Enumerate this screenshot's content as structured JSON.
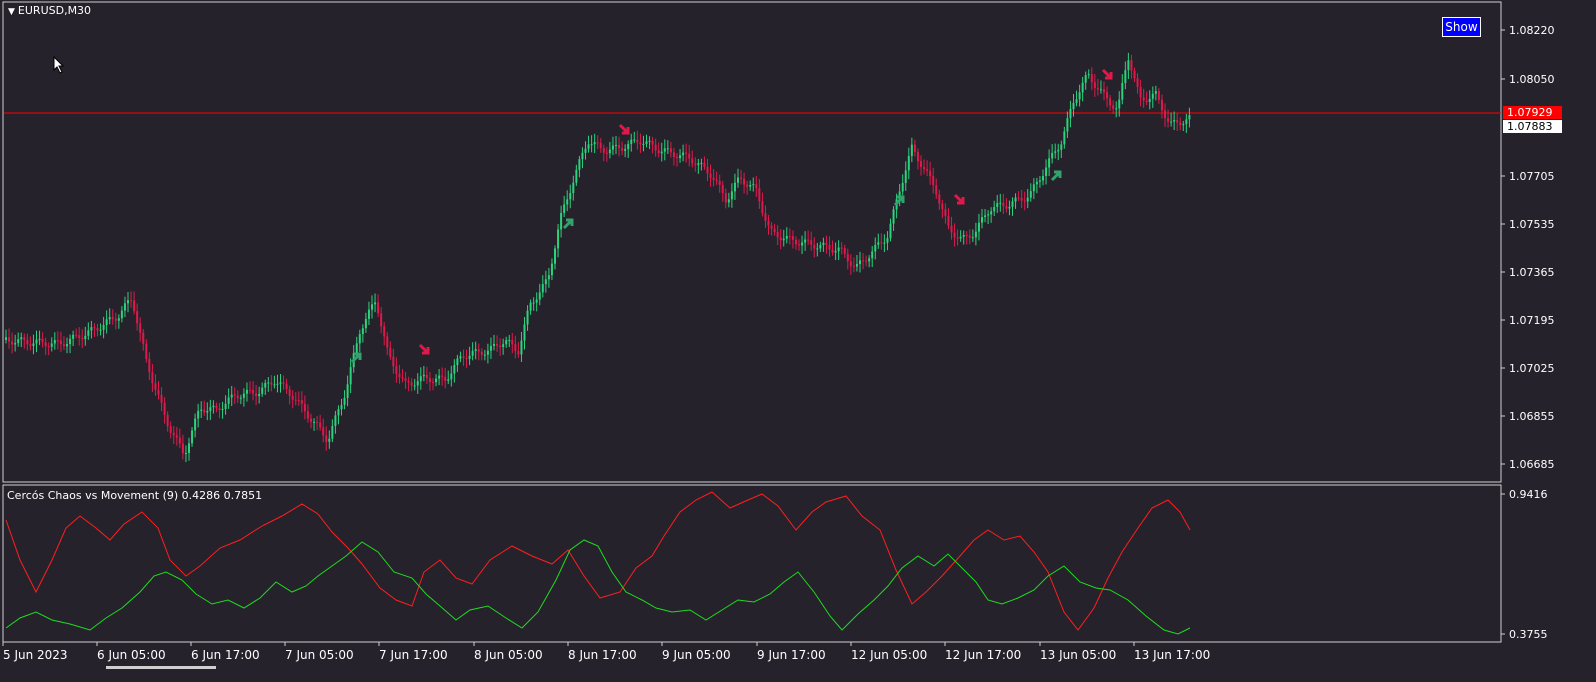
{
  "symbol": {
    "label": "EURUSD,M30"
  },
  "show_button": {
    "label": "Show"
  },
  "indicator": {
    "label": "Cercós Chaos vs Movement (9) 0.4286 0.7851"
  },
  "price_axis": [
    "1.08220",
    "1.08050",
    "1.07705",
    "1.07535",
    "1.07365",
    "1.07195",
    "1.07025",
    "1.06855",
    "1.06685"
  ],
  "price_tags": {
    "bid": "1.07929",
    "current": "1.07883"
  },
  "indicator_axis": {
    "top": "0.9416",
    "bottom": "0.3755"
  },
  "time_axis": [
    "5 Jun 2023",
    "6 Jun 05:00",
    "6 Jun 17:00",
    "7 Jun 05:00",
    "7 Jun 17:00",
    "8 Jun 05:00",
    "8 Jun 17:00",
    "9 Jun 05:00",
    "9 Jun 17:00",
    "12 Jun 05:00",
    "12 Jun 17:00",
    "13 Jun 05:00",
    "13 Jun 17:00"
  ],
  "colors": {
    "background": "#25222b",
    "bull": "#2bd37c",
    "bear": "#e0194a",
    "chaos_line": "#ff1f1f",
    "movement_line": "#1fdc1f",
    "price_line": "#ff0000",
    "arrow_up": "#31a36b",
    "arrow_down": "#e0194a"
  },
  "icons": {
    "arrow_up": "arrow-up-right-icon",
    "arrow_down": "arrow-down-right-icon",
    "cursor": "mouse-pointer-icon"
  }
}
